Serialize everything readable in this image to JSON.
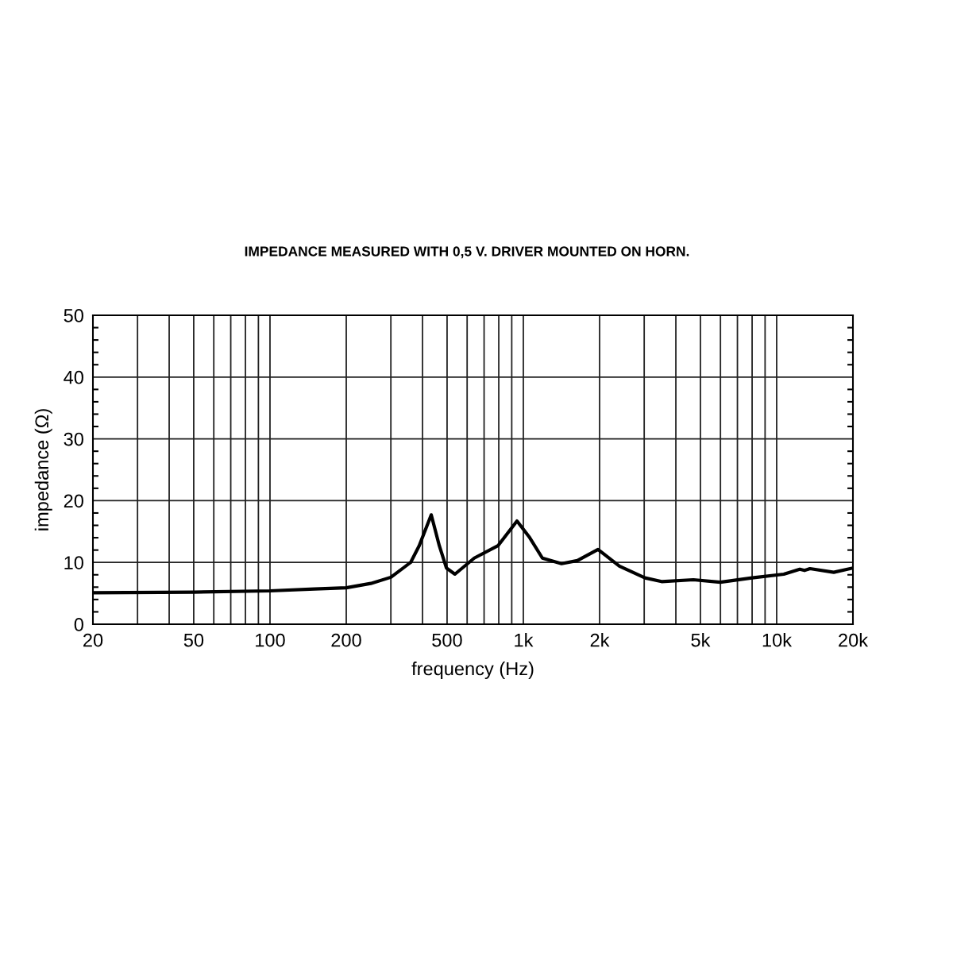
{
  "chart_data": {
    "type": "line",
    "title": "IMPEDANCE MEASURED WITH 0,5 V. DRIVER MOUNTED ON HORN.",
    "xlabel": "frequency (Hz)",
    "ylabel": "impedance (Ω)",
    "log": "x",
    "grid": true,
    "marker": "none",
    "line_style": "solid",
    "xlim": [
      20,
      20000
    ],
    "xticks": [
      20,
      50,
      100,
      200,
      500,
      {
        "value": 1000,
        "label": "1k"
      },
      {
        "value": 2000,
        "label": "2k"
      },
      {
        "value": 5000,
        "label": "5k"
      },
      {
        "value": 10000,
        "label": "10k"
      },
      {
        "value": 20000,
        "label": "20k"
      }
    ],
    "ylim": [
      0,
      50
    ],
    "yticks": [
      0,
      {
        "value": 2,
        "label": null
      },
      {
        "value": 4,
        "label": null
      },
      {
        "value": 6,
        "label": null
      },
      {
        "value": 8,
        "label": null
      },
      10,
      {
        "value": 12,
        "label": null
      },
      {
        "value": 14,
        "label": null
      },
      {
        "value": 16,
        "label": null
      },
      {
        "value": 18,
        "label": null
      },
      20,
      {
        "value": 22,
        "label": null
      },
      {
        "value": 24,
        "label": null
      },
      {
        "value": 26,
        "label": null
      },
      {
        "value": 28,
        "label": null
      },
      30,
      {
        "value": 32,
        "label": null
      },
      {
        "value": 34,
        "label": null
      },
      {
        "value": 36,
        "label": null
      },
      {
        "value": 38,
        "label": null
      },
      40,
      {
        "value": 42,
        "label": null
      },
      {
        "value": 44,
        "label": null
      },
      {
        "value": 46,
        "label": null
      },
      {
        "value": 48,
        "label": null
      },
      50
    ],
    "series": [
      {
        "color": "#000000",
        "x": [
          20,
          50,
          100,
          150,
          200,
          250,
          300,
          359,
          388,
          433,
          466,
          497,
          537,
          640,
          794,
          944,
          1060,
          1189,
          1415,
          1634,
          1971,
          2395,
          3019,
          3513,
          4689,
          5989,
          7996,
          10670,
          12340,
          12880,
          13540,
          16800,
          20000
        ],
        "values": [
          5.1,
          5.2,
          5.4,
          5.7,
          5.9,
          6.6,
          7.6,
          10.0,
          12.7,
          17.7,
          12.7,
          9.1,
          8.1,
          10.7,
          12.7,
          16.7,
          14.0,
          10.7,
          9.8,
          10.3,
          12.1,
          9.4,
          7.5,
          6.9,
          7.2,
          6.8,
          7.5,
          8.1,
          8.9,
          8.7,
          9.0,
          8.4,
          9.1
        ]
      }
    ]
  }
}
